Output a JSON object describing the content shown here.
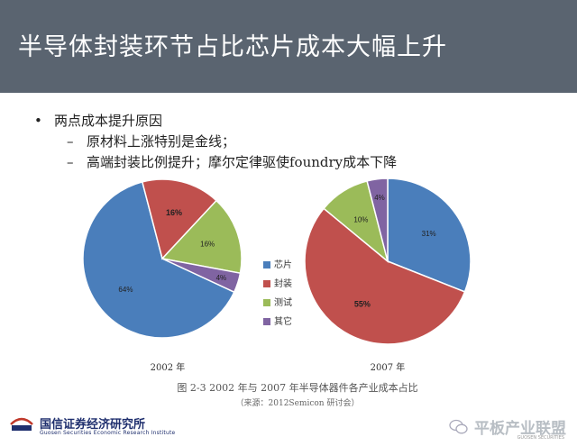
{
  "header": {
    "title": "半导体封装环节占比芯片成本大幅上升"
  },
  "bullets": {
    "main": "两点成本提升原因",
    "subs": [
      "原材料上涨特别是金线；",
      "高端封装比例提升；摩尔定律驱使foundry成本下降"
    ]
  },
  "chart_data": {
    "type": "pie",
    "categories": [
      "芯片",
      "封装",
      "测试",
      "其它"
    ],
    "colors": [
      "#4a7ebb",
      "#c0504d",
      "#9bbb59",
      "#8064a2"
    ],
    "pies": [
      {
        "label": "2002 年",
        "values": [
          64,
          16,
          16,
          4
        ],
        "data_labels": [
          "64%",
          "16%",
          "16%",
          "4%"
        ],
        "bold_index": 1
      },
      {
        "label": "2007 年",
        "values": [
          31,
          55,
          10,
          4
        ],
        "data_labels": [
          "31%",
          "55%",
          "10%",
          "4%"
        ],
        "bold_index": 1
      }
    ],
    "legend_position": "center"
  },
  "caption": "图 2-3  2002 年与 2007 年半导体器件各产业成本占比",
  "source": "（来源：2012Semicon 研讨会）",
  "footer": {
    "logo_text": "国信证券经济研究所",
    "logo_sub": "Guosen Securities Economic Research Institute",
    "watermark": "平板产业联盟",
    "watermark_small": "GUOSEN SECURITIES"
  }
}
